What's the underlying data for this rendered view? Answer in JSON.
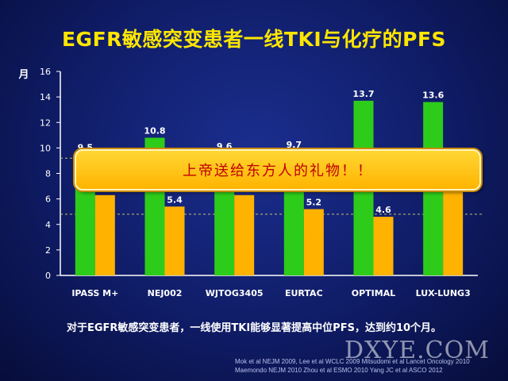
{
  "slide": {
    "title": "EGFR敏感突变患者一线TKI与化疗的PFS",
    "caption": "对于EGFR敏感突变患者，一线使用TKI能够显著提高中位PFS，达到约10个月。",
    "callout": "上帝送给东方人的礼物！！",
    "references": [
      "Mok et al NEJM 2009, Lee et al WCLC 2009  Mitsudomi et al Lancet Oncology 2010",
      "Maemondo NEJM 2010  Zhou et al ESMO 2010  Yang JC et al  ASCO 2012"
    ],
    "watermark": "DXYE.COM"
  },
  "chart_data": {
    "type": "bar",
    "title": "EGFR敏感突变患者一线TKI与化疗的PFS",
    "ylabel": "月",
    "xlabel": "",
    "ylim": [
      0,
      16
    ],
    "yticks": [
      0,
      2,
      4,
      6,
      8,
      10,
      12,
      14,
      16
    ],
    "grid": false,
    "categories": [
      "IPASS M+",
      "NEJ002",
      "WJTOG3405",
      "EURTAC",
      "OPTIMAL",
      "LUX-LUNG3"
    ],
    "series": [
      {
        "color": "#2ecc1a",
        "values": [
          9.5,
          10.8,
          9.6,
          9.7,
          13.7,
          13.6
        ],
        "labels": [
          "9.5",
          "10.8",
          "9.6",
          "9.7",
          "13.7",
          "13.6"
        ]
      },
      {
        "color": "#ffb300",
        "values": [
          6.3,
          5.4,
          6.3,
          5.2,
          4.6,
          6.9
        ],
        "labels": [
          "",
          "5.4",
          "",
          "5.2",
          "4.6",
          ""
        ]
      }
    ],
    "reference_lines": [
      9.2,
      4.8
    ]
  }
}
